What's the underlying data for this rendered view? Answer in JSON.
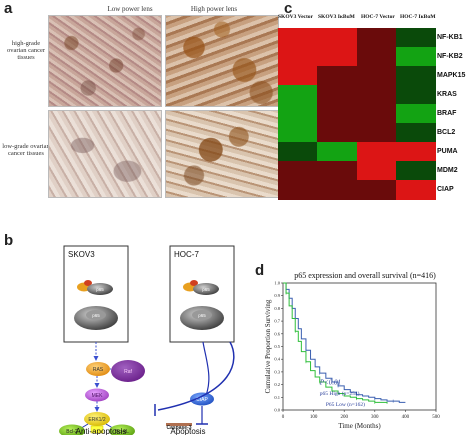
{
  "panel_a": {
    "letter": "a",
    "col_headers": [
      "Low power lens",
      "High power lens"
    ],
    "row_labels": [
      "high-grade ovarian cancer tissues",
      "low-grade ovarian cancer tissues"
    ]
  },
  "panel_b": {
    "letter": "b",
    "cell_lines": [
      "SKOV3",
      "HOC-7"
    ],
    "nodes": {
      "p65": "p65",
      "p65_nuc": "p65",
      "ras": "RAS",
      "raf": "Raf",
      "mek": "MEK",
      "erk": "ERK1/2",
      "bcl2": "Bcl-2",
      "bclxl": "Bcl-xL",
      "ciap": "CIAP",
      "caspase": "Caspase-3"
    },
    "outcomes": [
      "Anti-apoptosis",
      "Apoptosis"
    ]
  },
  "panel_c": {
    "letter": "c",
    "columns": [
      "SKOV3 Vector",
      "SKOV3 IκBαM",
      "HOC-7 Vector",
      "HOC-7 IκBαM"
    ],
    "genes": [
      "NF-KB1",
      "NF-KB2",
      "MAPK15",
      "KRAS",
      "BRAF",
      "BCL2",
      "PUMA",
      "MDM2",
      "CIAP"
    ],
    "colors": {
      "high": "#e01010",
      "low": "#0fa40f",
      "mid": "#1a0a0a"
    }
  },
  "panel_d": {
    "letter": "d",
    "chart_data": {
      "type": "line",
      "title": "p65 expression and overall survival (n=416)",
      "xlabel": "Time (Months)",
      "ylabel": "Cumulative Proportion Surviving",
      "xlim": [
        0,
        500
      ],
      "ylim": [
        0,
        1
      ],
      "xticks": [
        "0",
        "100",
        "200",
        "300",
        "400",
        "500"
      ],
      "yticks": [
        "0.0",
        "0.1",
        "0.2",
        "0.3",
        "0.4",
        "0.5",
        "0.6",
        "0.7",
        "0.8",
        "0.9",
        "1.0"
      ],
      "annotation": "P<0.01",
      "series": [
        {
          "name": "p65 High (n=254)",
          "color": "#3a5fb0",
          "x": [
            0,
            10,
            20,
            30,
            40,
            50,
            60,
            75,
            90,
            105,
            120,
            140,
            160,
            180,
            200,
            220,
            240,
            260,
            280,
            300,
            320,
            340,
            360,
            380,
            400
          ],
          "y": [
            1.0,
            0.95,
            0.88,
            0.8,
            0.72,
            0.64,
            0.56,
            0.47,
            0.4,
            0.34,
            0.29,
            0.25,
            0.22,
            0.19,
            0.16,
            0.14,
            0.12,
            0.11,
            0.1,
            0.09,
            0.08,
            0.07,
            0.07,
            0.06,
            0.06
          ]
        },
        {
          "name": "P65 Low (n=162)",
          "color": "#2fbf3a",
          "x": [
            0,
            10,
            20,
            30,
            40,
            50,
            60,
            75,
            90,
            105,
            120,
            140,
            160,
            180,
            200,
            220,
            240,
            260,
            280,
            300,
            320,
            340
          ],
          "y": [
            1.0,
            0.92,
            0.82,
            0.72,
            0.62,
            0.54,
            0.46,
            0.38,
            0.31,
            0.26,
            0.22,
            0.18,
            0.15,
            0.13,
            0.11,
            0.1,
            0.09,
            0.08,
            0.07,
            0.06,
            0.06,
            0.05
          ]
        }
      ]
    }
  }
}
